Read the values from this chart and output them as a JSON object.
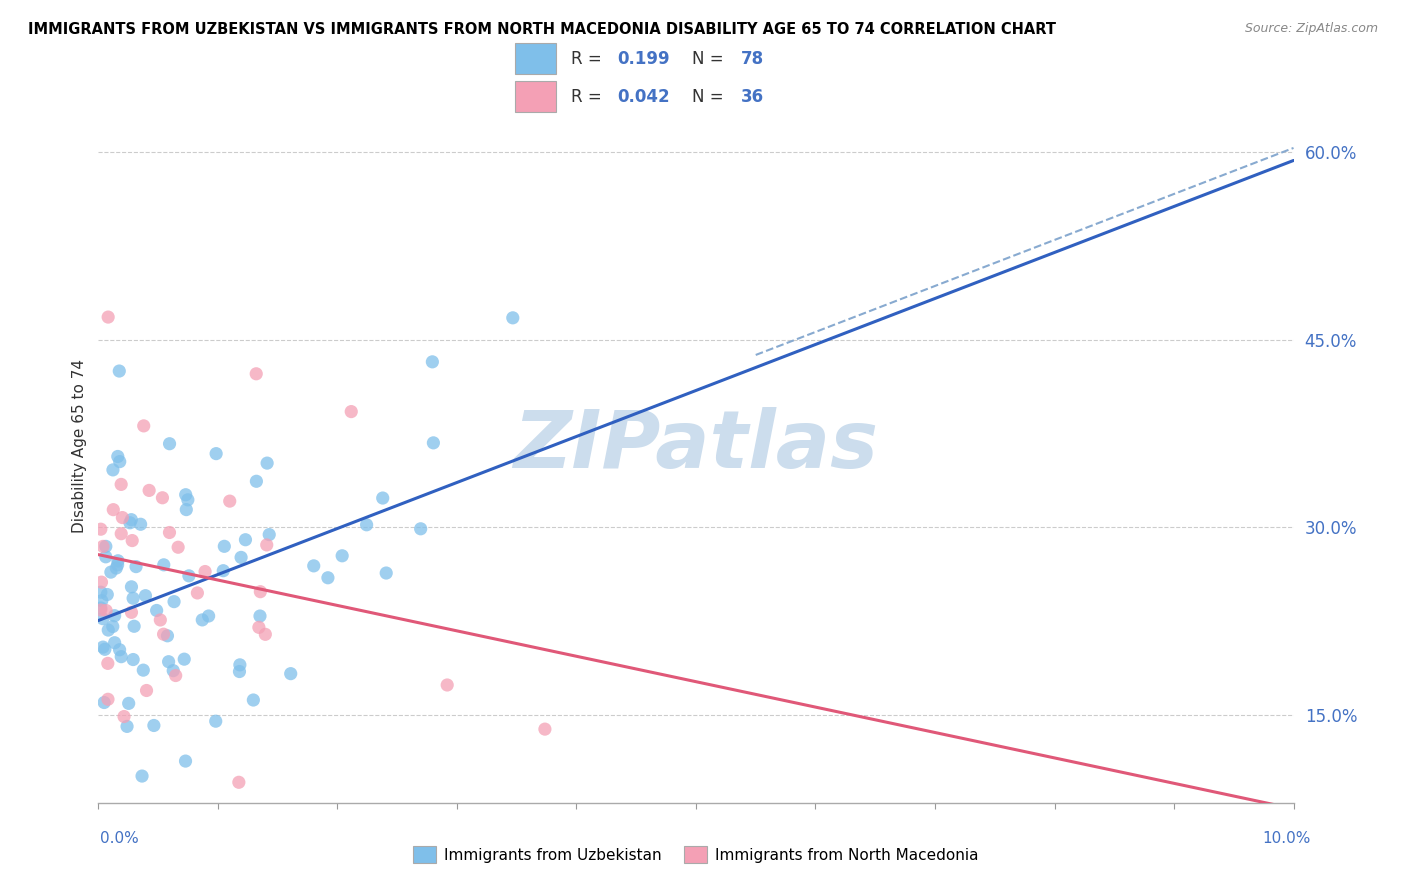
{
  "title": "IMMIGRANTS FROM UZBEKISTAN VS IMMIGRANTS FROM NORTH MACEDONIA DISABILITY AGE 65 TO 74 CORRELATION CHART",
  "source": "Source: ZipAtlas.com",
  "ylabel": "Disability Age 65 to 74",
  "legend_label_uzbekistan": "Immigrants from Uzbekistan",
  "legend_label_north_macedonia": "Immigrants from North Macedonia",
  "x_min": 0.0,
  "x_max": 0.1,
  "y_min": 0.08,
  "y_max": 0.65,
  "y_ticks": [
    0.15,
    0.3,
    0.45,
    0.6
  ],
  "y_tick_labels": [
    "15.0%",
    "30.0%",
    "45.0%",
    "60.0%"
  ],
  "r_uzbekistan": 0.199,
  "n_uzbekistan": 78,
  "r_north_macedonia": 0.042,
  "n_north_macedonia": 36,
  "color_uzbekistan": "#7fbfea",
  "color_north_macedonia": "#f4a0b5",
  "trendline_color_uzbekistan": "#3060c0",
  "trendline_color_north_macedonia": "#e05878",
  "dashed_line_color": "#88aad0",
  "watermark_text": "ZIPatlas",
  "watermark_color": "#ccdded"
}
